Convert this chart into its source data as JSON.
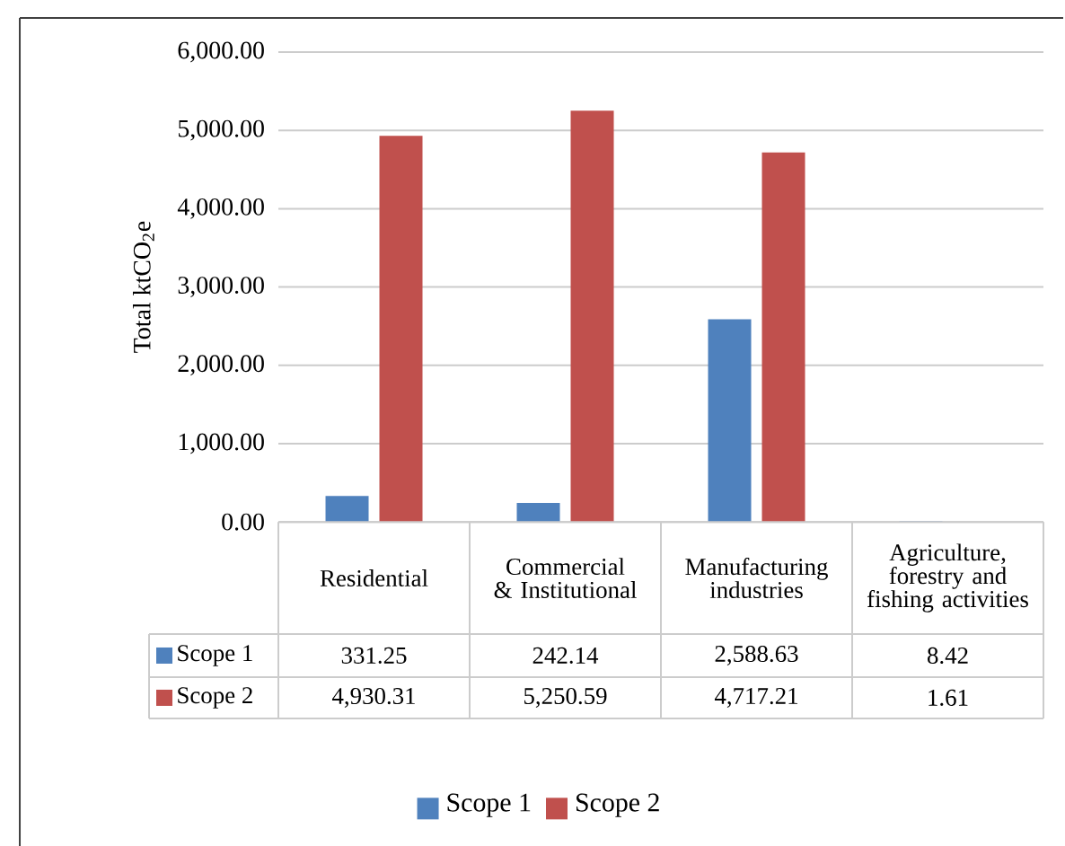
{
  "chart_data": {
    "type": "bar",
    "ylabel": "Total ktCO$_{2}$e",
    "categories": [
      "Residential",
      "Commercial & Institutional",
      "Manufacturing industries",
      "Agriculture, forestry and fishing activities"
    ],
    "series": [
      {
        "name": "Scope 1",
        "color": "#4f81bd",
        "values": [
          331.25,
          242.14,
          2588.63,
          8.42
        ],
        "value_labels": [
          "331.25",
          "242.14",
          "2,588.63",
          "8.42"
        ]
      },
      {
        "name": "Scope 2",
        "color": "#c0504d",
        "values": [
          4930.31,
          5250.59,
          4717.21,
          1.61
        ],
        "value_labels": [
          "4,930.31",
          "5,250.59",
          "4,717.21",
          "1.61"
        ]
      }
    ],
    "ylim": [
      0,
      6000
    ],
    "yticks": [
      {
        "value": 0,
        "label": "0.00"
      },
      {
        "value": 1000,
        "label": "1,000.00"
      },
      {
        "value": 2000,
        "label": "2,000.00"
      },
      {
        "value": 3000,
        "label": "3,000.00"
      },
      {
        "value": 4000,
        "label": "4,000.00"
      },
      {
        "value": 5000,
        "label": "5,000.00"
      },
      {
        "value": 6000,
        "label": "6,000.00"
      }
    ],
    "grid": "y",
    "legend": "bottom"
  }
}
